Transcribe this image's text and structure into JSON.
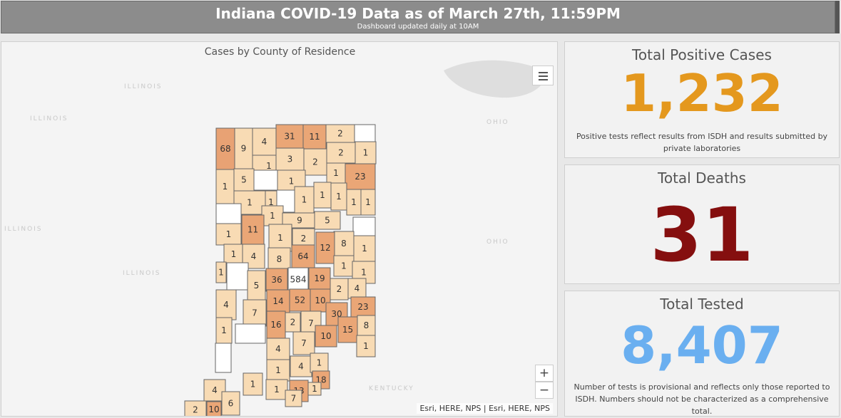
{
  "header": {
    "title": "Indiana COVID-19 Data as of March 27th, 11:59PM",
    "subtitle": "Dashboard updated daily at 10AM"
  },
  "map": {
    "title": "Cases by County of Residence",
    "background_labels": [
      "ILLINOIS",
      "ILLINOIS",
      "ILLINOIS",
      "ILLINOIS",
      "OHIO",
      "OHIO",
      "KENTUCKY"
    ],
    "attribution": "Esri, HERE, NPS | Esri, HERE, NPS",
    "zoom_in": "+",
    "zoom_out": "−",
    "colors": {
      "none": "#ffffff",
      "low": "#f8dbb4",
      "mid": "#eaa676",
      "high": "#e8a274",
      "border": "#666666"
    },
    "counties": [
      {
        "label": "68",
        "level": "high"
      },
      {
        "label": "9",
        "level": "low"
      },
      {
        "label": "4",
        "level": "low"
      },
      {
        "label": "31",
        "level": "mid"
      },
      {
        "label": "11",
        "level": "mid"
      },
      {
        "label": "2",
        "level": "low"
      },
      {
        "label": "",
        "level": "none"
      },
      {
        "label": "1",
        "level": "low"
      },
      {
        "label": "3",
        "level": "low"
      },
      {
        "label": "2",
        "level": "low"
      },
      {
        "label": "2",
        "level": "low"
      },
      {
        "label": "1",
        "level": "low"
      },
      {
        "label": "1",
        "level": "low"
      },
      {
        "label": "5",
        "level": "low"
      },
      {
        "label": "",
        "level": "none"
      },
      {
        "label": "1",
        "level": "low"
      },
      {
        "label": "1",
        "level": "low"
      },
      {
        "label": "23",
        "level": "mid"
      },
      {
        "label": "1",
        "level": "low"
      },
      {
        "label": "1",
        "level": "low"
      },
      {
        "label": "",
        "level": "none"
      },
      {
        "label": "1",
        "level": "low"
      },
      {
        "label": "1",
        "level": "low"
      },
      {
        "label": "1",
        "level": "low"
      },
      {
        "label": "1",
        "level": "low"
      },
      {
        "label": "1",
        "level": "low"
      },
      {
        "label": "",
        "level": "none"
      },
      {
        "label": "1",
        "level": "low"
      },
      {
        "label": "9",
        "level": "low"
      },
      {
        "label": "5",
        "level": "low"
      },
      {
        "label": "",
        "level": "none"
      },
      {
        "label": "1",
        "level": "low"
      },
      {
        "label": "11",
        "level": "mid"
      },
      {
        "label": "1",
        "level": "low"
      },
      {
        "label": "2",
        "level": "low"
      },
      {
        "label": "8",
        "level": "low"
      },
      {
        "label": "1",
        "level": "low"
      },
      {
        "label": "4",
        "level": "low"
      },
      {
        "label": "8",
        "level": "low"
      },
      {
        "label": "64",
        "level": "mid"
      },
      {
        "label": "12",
        "level": "mid"
      },
      {
        "label": "1",
        "level": "low"
      },
      {
        "label": "1",
        "level": "low"
      },
      {
        "label": "",
        "level": "none"
      },
      {
        "label": "36",
        "level": "mid"
      },
      {
        "label": "584",
        "level": "none"
      },
      {
        "label": "19",
        "level": "mid"
      },
      {
        "label": "1",
        "level": "low"
      },
      {
        "label": "1",
        "level": "low"
      },
      {
        "label": "5",
        "level": "low"
      },
      {
        "label": "2",
        "level": "low"
      },
      {
        "label": "4",
        "level": "low"
      },
      {
        "label": "4",
        "level": "low"
      },
      {
        "label": "14",
        "level": "mid"
      },
      {
        "label": "52",
        "level": "mid"
      },
      {
        "label": "10",
        "level": "mid"
      },
      {
        "label": "23",
        "level": "mid"
      },
      {
        "label": "7",
        "level": "low"
      },
      {
        "label": "30",
        "level": "mid"
      },
      {
        "label": "1",
        "level": "low"
      },
      {
        "label": "",
        "level": "none"
      },
      {
        "label": "16",
        "level": "mid"
      },
      {
        "label": "2",
        "level": "low"
      },
      {
        "label": "7",
        "level": "low"
      },
      {
        "label": "15",
        "level": "mid"
      },
      {
        "label": "8",
        "level": "low"
      },
      {
        "label": "7",
        "level": "low"
      },
      {
        "label": "10",
        "level": "mid"
      },
      {
        "label": "1",
        "level": "low"
      },
      {
        "label": "",
        "level": "none"
      },
      {
        "label": "4",
        "level": "low"
      },
      {
        "label": "1",
        "level": "low"
      },
      {
        "label": "1",
        "level": "low"
      },
      {
        "label": "4",
        "level": "low"
      },
      {
        "label": "1",
        "level": "low"
      },
      {
        "label": "18",
        "level": "mid"
      },
      {
        "label": "4",
        "level": "low"
      },
      {
        "label": "1",
        "level": "low"
      },
      {
        "label": "1",
        "level": "low"
      },
      {
        "label": "13",
        "level": "mid"
      },
      {
        "label": "2",
        "level": "low"
      },
      {
        "label": "10",
        "level": "mid"
      },
      {
        "label": "6",
        "level": "low"
      },
      {
        "label": "7",
        "level": "low"
      }
    ]
  },
  "cards": {
    "positive": {
      "title": "Total Positive Cases",
      "value": "1,232",
      "note": "Positive tests reflect results from ISDH and results submitted by private laboratories",
      "color": "#e4981e"
    },
    "deaths": {
      "title": "Total Deaths",
      "value": "31",
      "color": "#850f0f"
    },
    "tested": {
      "title": "Total Tested",
      "value": "8,407",
      "note": "Number of tests is provisional and reflects only those reported to ISDH. Numbers should not be characterized as a comprehensive total.",
      "color": "#6aaff0"
    }
  }
}
